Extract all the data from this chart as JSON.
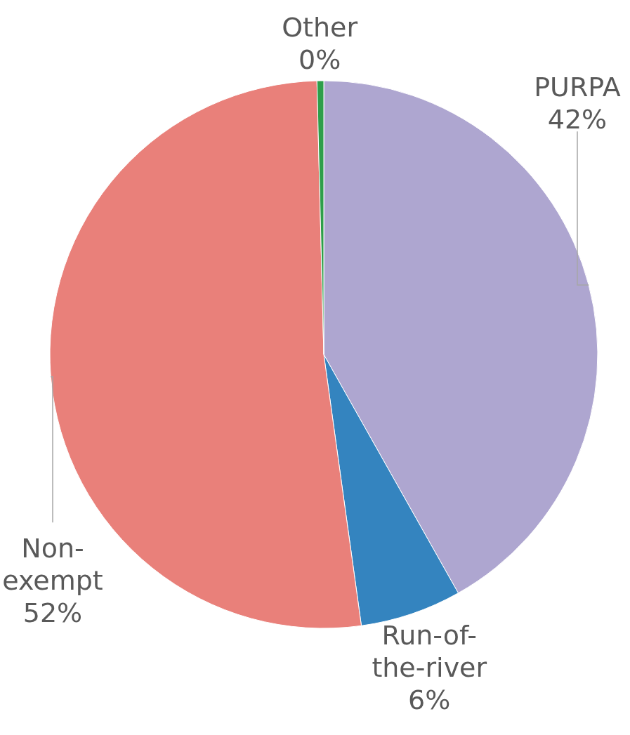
{
  "chart_data": {
    "type": "pie",
    "categories": [
      "PURPA",
      "Run-of-the-river",
      "Non-exempt",
      "Other"
    ],
    "values": [
      42,
      6,
      52,
      0.4
    ],
    "value_labels": [
      "42%",
      "6%",
      "52%",
      "0%"
    ],
    "colors": [
      "#aea6d0",
      "#3484bf",
      "#e9807a",
      "#2e9e4a"
    ]
  }
}
